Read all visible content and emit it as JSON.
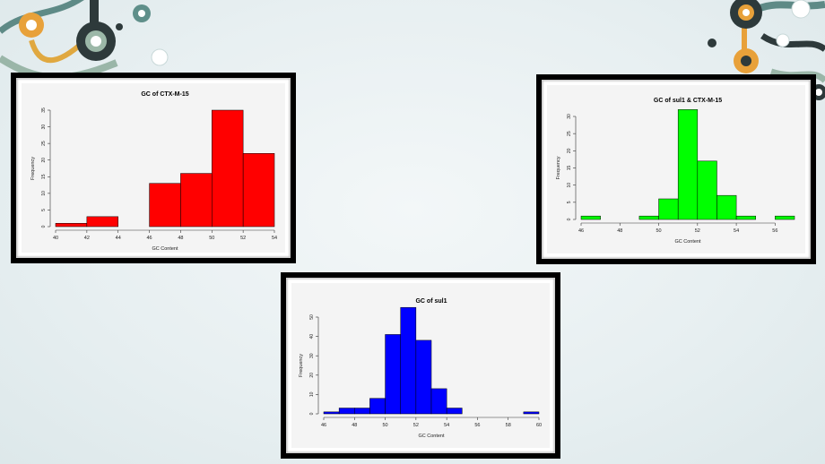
{
  "chart_data": [
    {
      "type": "bar",
      "title": "GC of CTX-M-15",
      "xlabel": "GC Content",
      "ylabel": "Frequency",
      "color": "#ff0000",
      "bins": [
        [
          40,
          42
        ],
        [
          42,
          44
        ],
        [
          44,
          46
        ],
        [
          46,
          48
        ],
        [
          48,
          50
        ],
        [
          50,
          52
        ],
        [
          52,
          54
        ]
      ],
      "values": [
        1,
        3,
        0,
        13,
        16,
        35,
        22
      ],
      "xlim": [
        40,
        54
      ],
      "ylim": [
        0,
        35
      ],
      "xticks": [
        40,
        42,
        44,
        46,
        48,
        50,
        52,
        54
      ],
      "xtick_labels": [
        "40",
        "42",
        "44",
        "46",
        "48",
        "50",
        "52",
        "54"
      ],
      "yticks": [
        0,
        5,
        10,
        15,
        20,
        25,
        30,
        35
      ],
      "ytick_labels": [
        "0",
        "5",
        "10",
        "15",
        "20",
        "25",
        "30",
        "35"
      ]
    },
    {
      "type": "bar",
      "title": "GC of sul1 & CTX-M-15",
      "xlabel": "GC Content",
      "ylabel": "Frequency",
      "color": "#00ff00",
      "bins": [
        [
          46,
          47
        ],
        [
          47,
          48
        ],
        [
          48,
          49
        ],
        [
          49,
          50
        ],
        [
          50,
          51
        ],
        [
          51,
          52
        ],
        [
          52,
          53
        ],
        [
          53,
          54
        ],
        [
          54,
          55
        ],
        [
          55,
          56
        ],
        [
          56,
          57
        ]
      ],
      "values": [
        1,
        0,
        0,
        1,
        6,
        32,
        17,
        7,
        1,
        0,
        1
      ],
      "xlim": [
        46,
        57
      ],
      "ylim": [
        0,
        30
      ],
      "xticks": [
        46,
        48,
        50,
        52,
        54,
        56
      ],
      "xtick_labels": [
        "46",
        "48",
        "50",
        "52",
        "54",
        "56"
      ],
      "yticks": [
        0,
        5,
        10,
        15,
        20,
        25,
        30
      ],
      "ytick_labels": [
        "0",
        "5",
        "10",
        "15",
        "20",
        "25",
        "30"
      ]
    },
    {
      "type": "bar",
      "title": "GC of sul1",
      "xlabel": "GC Content",
      "ylabel": "Frequency",
      "color": "#0000ff",
      "bins": [
        [
          46,
          47
        ],
        [
          47,
          48
        ],
        [
          48,
          49
        ],
        [
          49,
          50
        ],
        [
          50,
          51
        ],
        [
          51,
          52
        ],
        [
          52,
          53
        ],
        [
          53,
          54
        ],
        [
          54,
          55
        ],
        [
          55,
          56
        ],
        [
          56,
          57
        ],
        [
          57,
          58
        ],
        [
          58,
          59
        ],
        [
          59,
          60
        ]
      ],
      "values": [
        1,
        3,
        3,
        8,
        41,
        55,
        38,
        13,
        3,
        0,
        0,
        0,
        0,
        1
      ],
      "xlim": [
        46,
        60
      ],
      "ylim": [
        0,
        50
      ],
      "xticks": [
        46,
        48,
        50,
        52,
        54,
        56,
        58,
        60
      ],
      "xtick_labels": [
        "46",
        "48",
        "50",
        "52",
        "54",
        "56",
        "58",
        "60"
      ],
      "yticks": [
        0,
        10,
        20,
        30,
        40,
        50
      ],
      "ytick_labels": [
        "0",
        "10",
        "20",
        "30",
        "40",
        "50"
      ]
    }
  ],
  "decor": {
    "dot_dark": "#2e3a3b",
    "dot_orange": "#e8a13a",
    "dot_teal": "#5f8f8a",
    "frame": "#000000"
  }
}
